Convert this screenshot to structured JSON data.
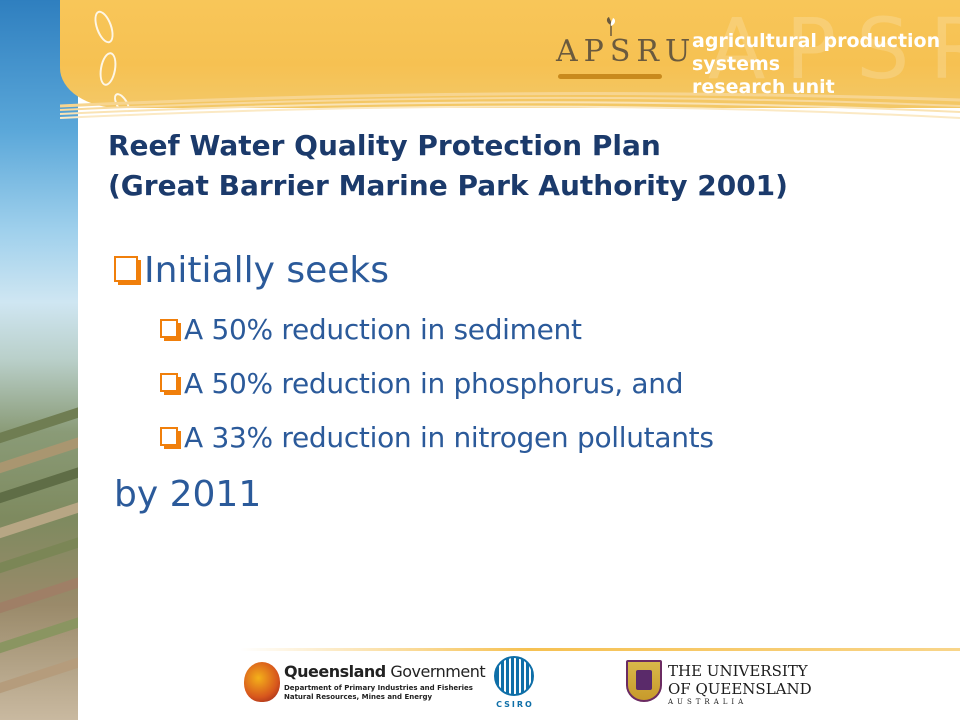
{
  "header": {
    "logo_text": "APSRU",
    "tagline": [
      "agricultural production systems",
      "research unit"
    ]
  },
  "title": {
    "line1": "Reef Water Quality Protection Plan",
    "line2": "(Great Barrier Marine Park Authority 2001)"
  },
  "content": {
    "main_bullet": "Initially seeks",
    "sub_bullets": [
      "A 50% reduction in sediment",
      "A 50% reduction in phosphorus, and",
      "A 33% reduction in nitrogen pollutants"
    ],
    "closing": "by 2011"
  },
  "footer": {
    "qld": {
      "name_bold": "Queensland",
      "name_regular": " Government",
      "dept_line1": "Department of Primary Industries and Fisheries",
      "dept_line2": "Natural Resources, Mines and Energy"
    },
    "csiro": "CSIRO",
    "uq": {
      "line1": "THE UNIVERSITY",
      "line2": "OF QUEENSLAND",
      "line3": "AUSTRALIA"
    }
  },
  "colors": {
    "title": "#1b3a6b",
    "body_text": "#2b5a9a",
    "bullet": "#f07f0b",
    "top_band": "#f6c152"
  },
  "icons": [
    "checkbox-bullet-icon",
    "apsru-sprout-icon",
    "qld-crest-icon",
    "csiro-icon",
    "uq-crest-icon"
  ]
}
